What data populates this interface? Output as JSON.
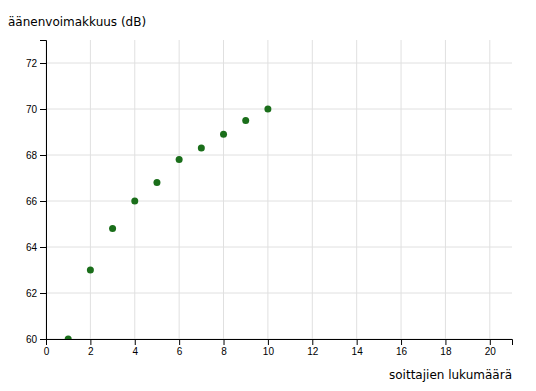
{
  "chart_data": {
    "type": "scatter",
    "x": [
      1,
      2,
      3,
      4,
      5,
      6,
      7,
      8,
      9,
      10
    ],
    "values": [
      60.0,
      63.0,
      64.8,
      66.0,
      66.8,
      67.8,
      68.3,
      68.9,
      69.5,
      70.0
    ],
    "xlabel": "soittajien lukumäärä",
    "ylabel": "äänenvoimakkuus (dB)",
    "xlim": [
      0,
      21
    ],
    "ylim": [
      60,
      73
    ],
    "xticks": [
      0,
      2,
      4,
      6,
      8,
      10,
      12,
      14,
      16,
      18,
      20
    ],
    "yticks": [
      60,
      62,
      64,
      66,
      68,
      70,
      72
    ],
    "color": "#1a6e1a",
    "grid": true
  }
}
